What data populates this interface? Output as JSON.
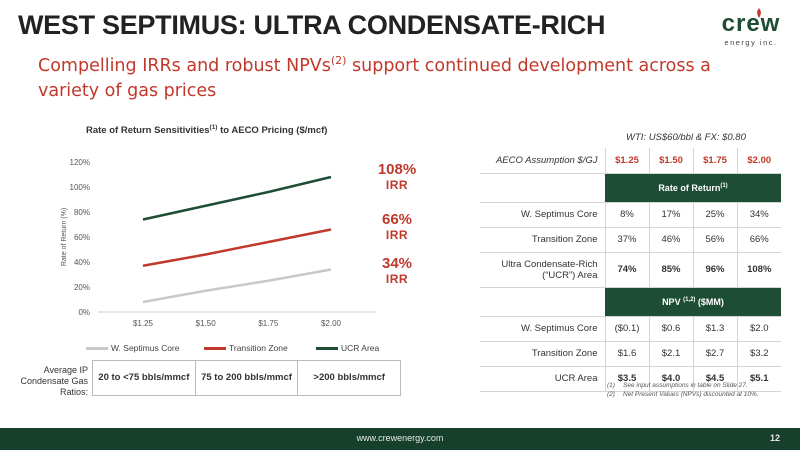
{
  "header": {
    "title": "WEST SEPTIMUS: ULTRA CONDENSATE-RICH",
    "subtitle_pre": "Compelling IRRs and robust NPVs",
    "subtitle_sup": "(2)",
    "subtitle_post": " support continued development across a variety of gas prices"
  },
  "logo": {
    "word": "crew",
    "sub": "energy inc."
  },
  "chart_title": {
    "pre": "Rate of Return Sensitivities",
    "sup": "(1)",
    "post": " to AECO Pricing ($/mcf)"
  },
  "chart_data": {
    "type": "line",
    "categories": [
      "$1.25",
      "$1.50",
      "$1.75",
      "$2.00"
    ],
    "ylabel": "Rate of Return (%)",
    "ylim": [
      0,
      120
    ],
    "yticks": [
      "0%",
      "20%",
      "40%",
      "60%",
      "80%",
      "100%",
      "120%"
    ],
    "legend_position": "bottom",
    "series": [
      {
        "name": "W. Septimus Core",
        "values": [
          8,
          17,
          25,
          34
        ],
        "color": "#c8c8c8"
      },
      {
        "name": "Transition Zone",
        "values": [
          37,
          46,
          56,
          66
        ],
        "color": "#c0392b"
      },
      {
        "name": "UCR Area",
        "values": [
          74,
          85,
          96,
          108
        ],
        "color": "#1e4d36"
      }
    ]
  },
  "callouts": [
    {
      "pct": "108%",
      "lbl": "IRR"
    },
    {
      "pct": "66%",
      "lbl": "IRR"
    },
    {
      "pct": "34%",
      "lbl": "IRR"
    }
  ],
  "ratios": {
    "label": "Average IP Condensate Gas Ratios:",
    "cells": [
      "20 to <75 bbls/mmcf",
      "75 to 200 bbls/mmcf",
      ">200 bbls/mmcf"
    ]
  },
  "table": {
    "wti": "WTI: US$60/bbl & FX: $0.80",
    "aeco_label": "AECO Assumption $/GJ",
    "prices": [
      "$1.25",
      "$1.50",
      "$1.75",
      "$2.00"
    ],
    "ror_header": "Rate of Return",
    "ror_sup": "(1)",
    "ror_rows": [
      {
        "label": "W. Septimus Core",
        "values": [
          "8%",
          "17%",
          "25%",
          "34%"
        ]
      },
      {
        "label": "Transition Zone",
        "values": [
          "37%",
          "46%",
          "56%",
          "66%"
        ]
      },
      {
        "label": "Ultra Condensate-Rich (“UCR”) Area",
        "values": [
          "74%",
          "85%",
          "96%",
          "108%"
        ]
      }
    ],
    "npv_pre": "NPV ",
    "npv_sup": "(1,2)",
    "npv_post": " ($MM)",
    "npv_rows": [
      {
        "label": "W. Septimus Core",
        "values": [
          "($0.1)",
          "$0.6",
          "$1.3",
          "$2.0"
        ]
      },
      {
        "label": "Transition Zone",
        "values": [
          "$1.6",
          "$2.1",
          "$2.7",
          "$3.2"
        ]
      },
      {
        "label": "UCR Area",
        "values": [
          "$3.5",
          "$4.0",
          "$4.5",
          "$5.1"
        ]
      }
    ]
  },
  "footnotes": [
    {
      "n": "(1)",
      "text": "See input assumptions in table on Slide 27."
    },
    {
      "n": "(2)",
      "text": "Net Present Values (NPVs) discounted at 10%."
    }
  ],
  "footer": {
    "url": "www.crewenergy.com",
    "page": "12"
  }
}
